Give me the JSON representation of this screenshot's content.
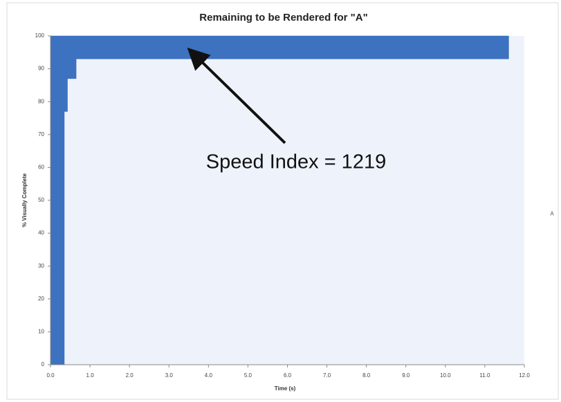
{
  "chart_data": {
    "type": "step-area",
    "title": "Remaining to be Rendered for \"A\"",
    "x_label": "Time (s)",
    "y_label": "% Visually Complete",
    "annotation": "Speed Index = 1219",
    "side_label": "A",
    "x": [
      0,
      0.35,
      0.43,
      0.65,
      11.6
    ],
    "values": [
      0,
      77,
      87,
      93,
      100
    ],
    "color": "#3d72c0",
    "xlim": [
      0,
      12
    ],
    "ylim": [
      0,
      100
    ],
    "xticks": [
      {
        "value": 0,
        "label": "0.0"
      },
      {
        "value": 1,
        "label": "1.0"
      },
      {
        "value": 2,
        "label": "2.0"
      },
      {
        "value": 3,
        "label": "3.0"
      },
      {
        "value": 4,
        "label": "4.0"
      },
      {
        "value": 5,
        "label": "5.0"
      },
      {
        "value": 6,
        "label": "6.0"
      },
      {
        "value": 7,
        "label": "7.0"
      },
      {
        "value": 8,
        "label": "8.0"
      },
      {
        "value": 9,
        "label": "9.0"
      },
      {
        "value": 10,
        "label": "10.0"
      },
      {
        "value": 11,
        "label": "11.0"
      },
      {
        "value": 12,
        "label": "12.0"
      }
    ],
    "yticks": [
      0,
      10,
      20,
      30,
      40,
      50,
      60,
      70,
      80,
      90,
      100
    ]
  }
}
